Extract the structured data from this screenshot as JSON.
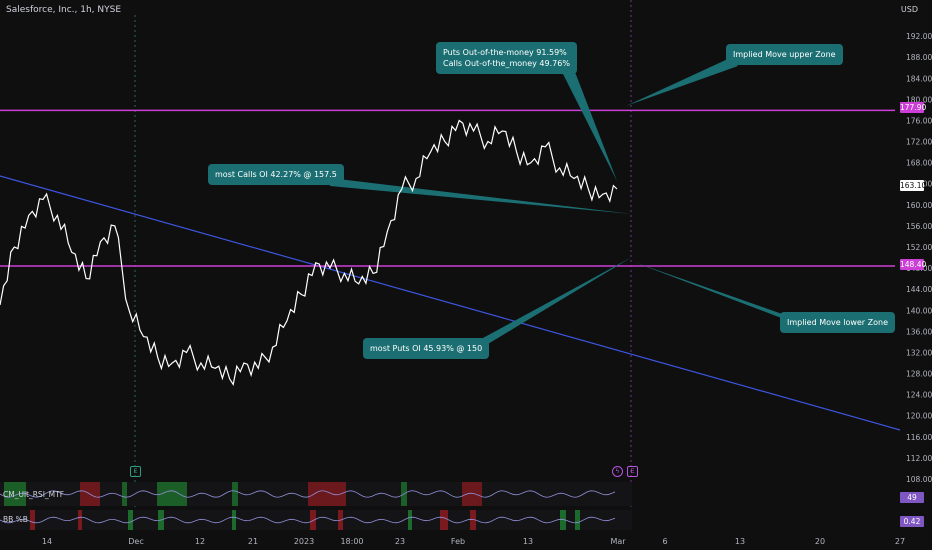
{
  "header": {
    "title": "Salesforce, Inc., 1h, NYSE",
    "currency": "USD"
  },
  "chart_data": {
    "type": "line",
    "title": "Salesforce, Inc., 1h, NYSE",
    "ylim": [
      108,
      196
    ],
    "y_ticks": [
      "192.00",
      "188.00",
      "184.00",
      "180.00",
      "176.00",
      "172.00",
      "168.00",
      "164.00",
      "160.00",
      "156.00",
      "152.00",
      "148.00",
      "144.00",
      "140.00",
      "136.00",
      "132.00",
      "128.00",
      "124.00",
      "120.00",
      "116.00",
      "112.00",
      "108.00"
    ],
    "x_ticks": [
      "14",
      "Dec",
      "12",
      "21",
      "2023",
      "18:00",
      "23",
      "Feb",
      "13",
      "Mar",
      "6",
      "13",
      "20",
      "27"
    ],
    "series": [
      {
        "x": [
          "14",
          "",
          "",
          "",
          "",
          "",
          "",
          "Dec",
          "",
          "",
          "",
          "",
          "",
          "12",
          "",
          "",
          "",
          "21",
          "",
          "",
          "",
          "",
          "2023",
          "",
          "",
          "18:00",
          "",
          "",
          "",
          "23",
          "",
          "",
          "",
          "",
          "Feb",
          "",
          "",
          "",
          "",
          "",
          "13",
          "",
          "",
          ""
        ],
        "values": [
          141,
          152,
          158,
          161,
          158,
          151,
          146,
          153,
          156,
          140,
          135,
          131,
          130,
          132,
          130,
          129,
          127,
          130,
          129,
          133,
          138,
          143,
          149,
          148,
          147,
          145,
          147,
          155,
          163,
          165,
          170,
          172,
          176,
          174,
          172,
          174,
          170,
          168,
          171,
          167,
          165,
          163,
          162,
          163
        ]
      }
    ],
    "horizontal_levels": [
      {
        "value": 177.9,
        "label": "177.90"
      },
      {
        "value": 148.4,
        "label": "148.40"
      }
    ],
    "current_price": {
      "value": 163.1,
      "label": "163.10"
    },
    "annotations": [
      {
        "text": "Puts Out-of-the-money 91.59%\nCalls Out-of-the_money 49.76%"
      },
      {
        "text": "Implied Move upper Zone"
      },
      {
        "text": "most Calls OI   42.27% @ 157.5"
      },
      {
        "text": "Implied Move lower Zone"
      },
      {
        "text": "most Puts OI    45.93% @ 150"
      }
    ],
    "event_markers": [
      "E",
      "E"
    ],
    "grid": false
  },
  "bubbles": {
    "puts_line1": "Puts Out-of-the-money 91.59%",
    "puts_line2": "Calls Out-of-the_money 49.76%",
    "upper_zone": "Implied Move upper Zone",
    "calls_oi": "most Calls OI   42.27% @ 157.5",
    "lower_zone": "Implied Move lower Zone",
    "puts_oi": "most Puts OI    45.93% @ 150"
  },
  "price_labels": {
    "upper": "177.90",
    "current": "163.10",
    "lower": "148.40"
  },
  "indicators": [
    {
      "name": "CM_Ult_RSI_MTF",
      "value": "49"
    },
    {
      "name": "BB %B",
      "value": "0.42"
    }
  ],
  "markers": {
    "earnings_left": "E",
    "earnings_right": "E",
    "flash": "ϟ"
  },
  "colors": {
    "background": "#0f0f10",
    "price_line": "#ffffff",
    "zone_line": "#cc3fd6",
    "trend_line": "#3d55e0",
    "bubble": "#1b6f73",
    "badge": "#7e57c2"
  }
}
